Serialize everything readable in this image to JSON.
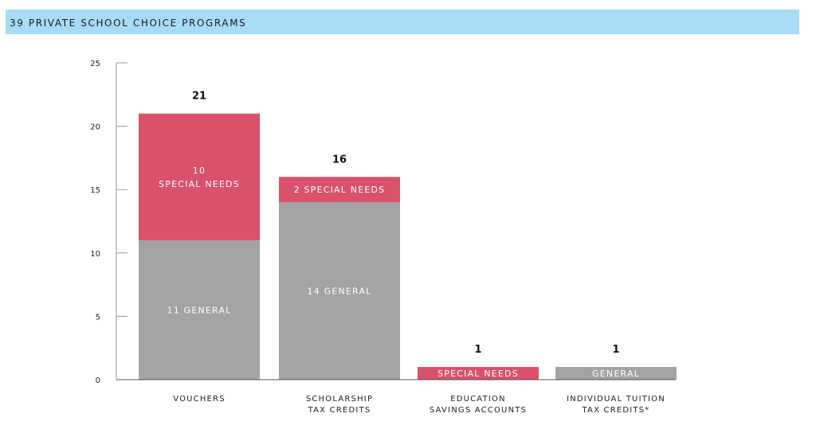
{
  "chart_data": {
    "type": "bar",
    "stacked": true,
    "title": "39 PRIVATE SCHOOL CHOICE PROGRAMS",
    "categories": [
      [
        "VOUCHERS"
      ],
      [
        "SCHOLARSHIP",
        "TAX CREDITS"
      ],
      [
        "EDUCATION",
        "SAVINGS ACCOUNTS"
      ],
      [
        "INDIVIDUAL TUITION",
        "TAX CREDITS*"
      ]
    ],
    "totals": [
      21,
      16,
      1,
      1
    ],
    "series": [
      {
        "key": "general",
        "values": [
          11,
          14,
          0,
          1
        ],
        "labels": [
          [
            "11 GENERAL"
          ],
          [
            "14 GENERAL"
          ],
          [],
          [
            "GENERAL"
          ]
        ],
        "color": "#a3a3a3"
      },
      {
        "key": "special_needs",
        "values": [
          10,
          2,
          1,
          0
        ],
        "labels": [
          [
            "10",
            "SPECIAL NEEDS"
          ],
          [
            "2 SPECIAL NEEDS"
          ],
          [
            "SPECIAL NEEDS"
          ],
          []
        ],
        "color": "#d9516b"
      }
    ],
    "ylim": [
      0,
      25
    ],
    "yticks": [
      "0",
      "5",
      "10",
      "15",
      "20",
      "25"
    ],
    "grid": false,
    "banner_color": "#a8dcf6"
  }
}
